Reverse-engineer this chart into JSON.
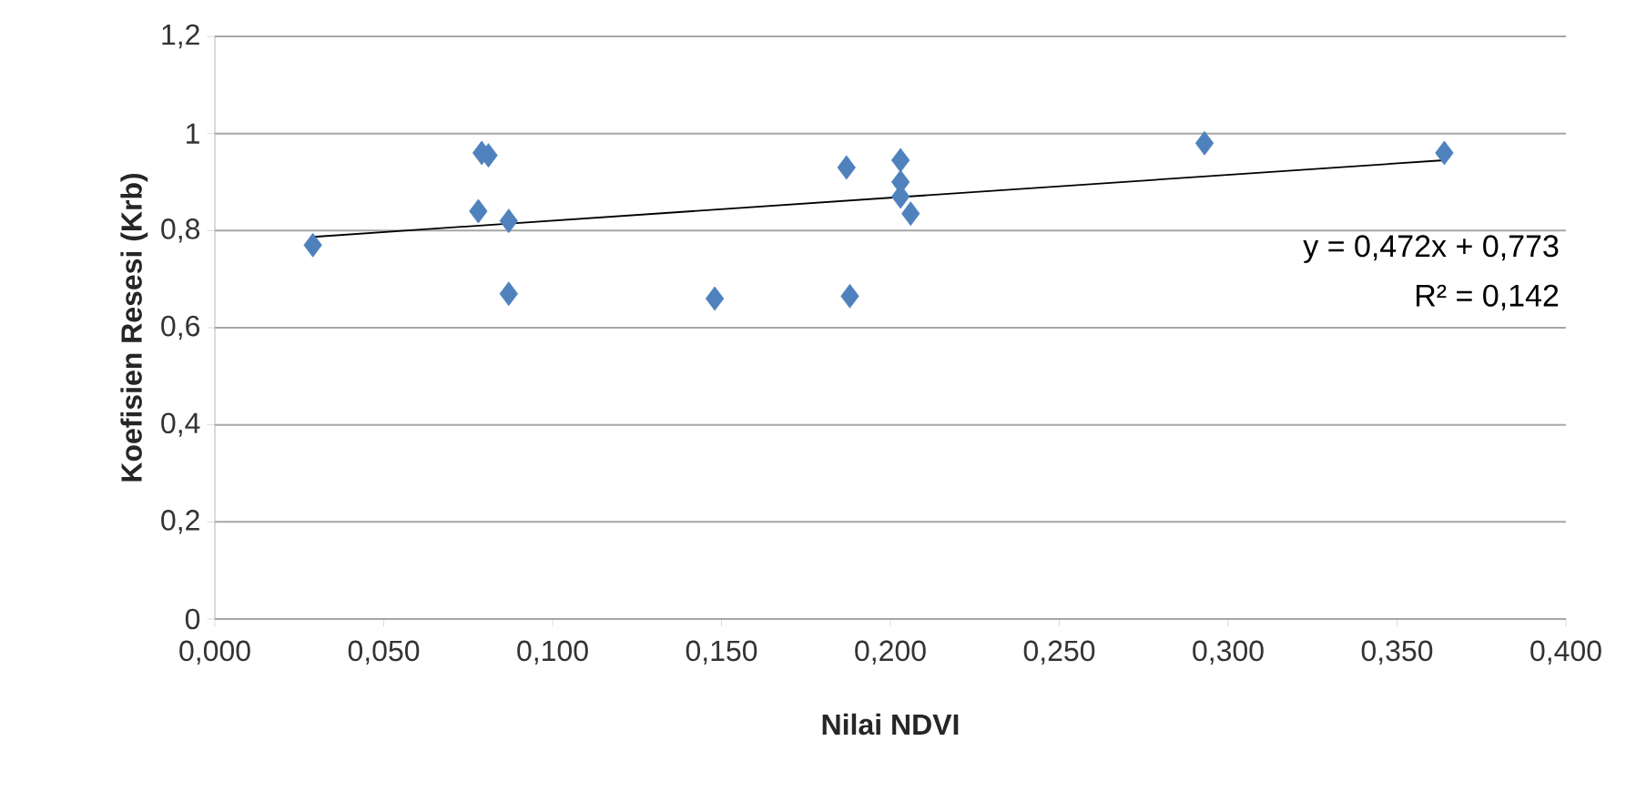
{
  "chart_data": {
    "type": "scatter",
    "xlabel": "Nilai NDVI",
    "ylabel": "Koefisien Resesi (Krb)",
    "xlim": [
      0,
      0.4
    ],
    "ylim": [
      0,
      1.2
    ],
    "xticks": [
      {
        "value": 0,
        "label": "0,000"
      },
      {
        "value": 0.05,
        "label": "0,050"
      },
      {
        "value": 0.1,
        "label": "0,100"
      },
      {
        "value": 0.15,
        "label": "0,150"
      },
      {
        "value": 0.2,
        "label": "0,200"
      },
      {
        "value": 0.25,
        "label": "0,250"
      },
      {
        "value": 0.3,
        "label": "0,300"
      },
      {
        "value": 0.35,
        "label": "0,350"
      },
      {
        "value": 0.4,
        "label": "0,400"
      }
    ],
    "yticks": [
      0,
      {
        "value": 0.2,
        "label": "0,2"
      },
      {
        "value": 0.4,
        "label": "0,4"
      },
      {
        "value": 0.6,
        "label": "0,6"
      },
      {
        "value": 0.8,
        "label": "0,8"
      },
      1,
      {
        "value": 1.2,
        "label": "1,2"
      }
    ],
    "grid": "y",
    "series": [
      {
        "color": "#4f81bd",
        "marker": "diamond",
        "x": [
          0.029,
          0.079,
          0.081,
          0.078,
          0.087,
          0.087,
          0.148,
          0.187,
          0.188,
          0.203,
          0.203,
          0.203,
          0.206,
          0.293,
          0.364
        ],
        "values": [
          0.77,
          0.96,
          0.955,
          0.84,
          0.82,
          0.67,
          0.66,
          0.93,
          0.665,
          0.945,
          0.9,
          0.87,
          0.835,
          0.98,
          0.96
        ]
      },
      {
        "type": "line",
        "color": "#000000",
        "marker": "none",
        "x": [
          0.029,
          0.364
        ],
        "values": [
          0.787,
          0.945
        ]
      }
    ],
    "annotations": [
      "y = 0,472x + 0,773",
      "R² = 0,142"
    ]
  }
}
